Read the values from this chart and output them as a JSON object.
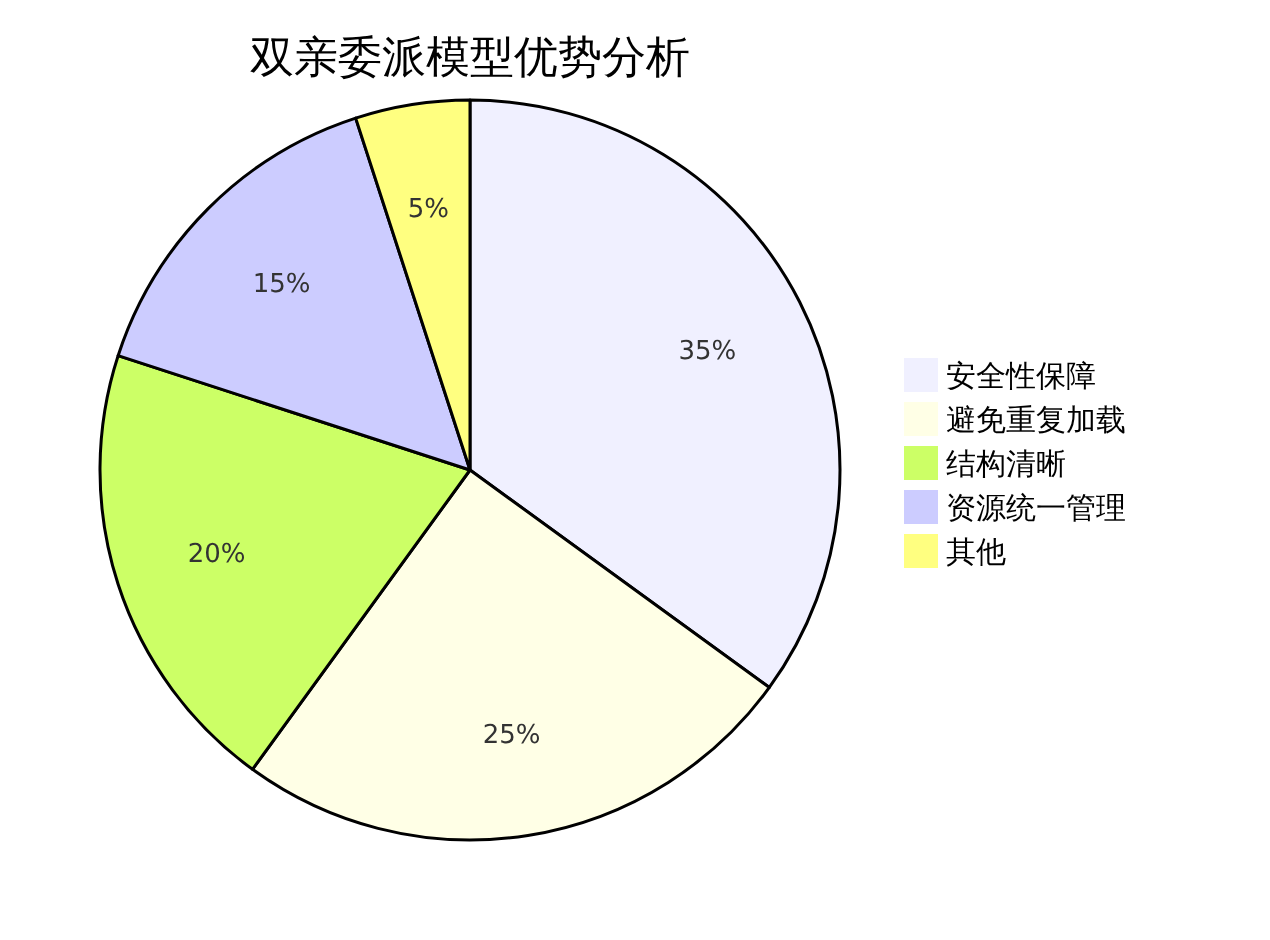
{
  "chart_data": {
    "type": "pie",
    "title": "双亲委派模型优势分析",
    "categories": [
      "安全性保障",
      "避免重复加载",
      "结构清晰",
      "资源统一管理",
      "其他"
    ],
    "values": [
      35,
      25,
      20,
      15,
      5
    ],
    "colors": [
      "#f0f0ff",
      "#ffffe6",
      "#ccff66",
      "#ccccff",
      "#ffff80"
    ],
    "value_labels": [
      "35%",
      "25%",
      "20%",
      "15%",
      "5%"
    ],
    "legend": "right"
  }
}
